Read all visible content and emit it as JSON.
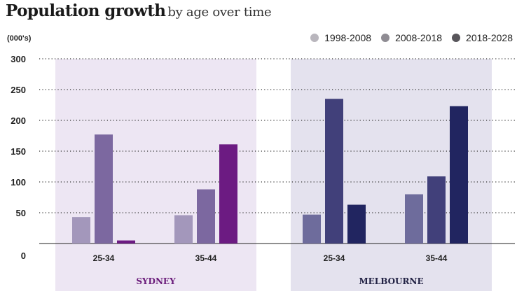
{
  "header": {
    "title_bold": "Population growth",
    "title_light": "by age over time",
    "unit": "(000's)"
  },
  "legend": [
    {
      "label": "1998-2008",
      "color": "#b9b6bd"
    },
    {
      "label": "2008-2018",
      "color": "#8f8c93"
    },
    {
      "label": "2018-2028",
      "color": "#58565b"
    }
  ],
  "chart_data": {
    "type": "bar",
    "title": "Population growth by age over time",
    "ylabel": "(000's)",
    "ylim": [
      0,
      300
    ],
    "yticks": [
      0,
      50,
      100,
      150,
      200,
      250,
      300
    ],
    "grid": "horizontal-dotted",
    "legend_position": "top-right",
    "series_names": [
      "1998-2008",
      "2008-2018",
      "2018-2028"
    ],
    "panels": [
      {
        "name": "SYDNEY",
        "label_color": "#6a1b7a",
        "background": "#ede6f3",
        "colors": [
          "#a397bb",
          "#7c68a0",
          "#6c1b82"
        ],
        "categories": [
          {
            "label": "25-34",
            "values": [
              43,
              177,
              5
            ]
          },
          {
            "label": "35-44",
            "values": [
              46,
              88,
              161
            ]
          }
        ]
      },
      {
        "name": "MELBOURNE",
        "label_color": "#222244",
        "background": "#e4e2ee",
        "colors": [
          "#6e6c9c",
          "#41407a",
          "#212560"
        ],
        "categories": [
          {
            "label": "25-34",
            "values": [
              47,
              235,
              63
            ]
          },
          {
            "label": "35-44",
            "values": [
              80,
              109,
              223
            ]
          }
        ]
      }
    ]
  }
}
